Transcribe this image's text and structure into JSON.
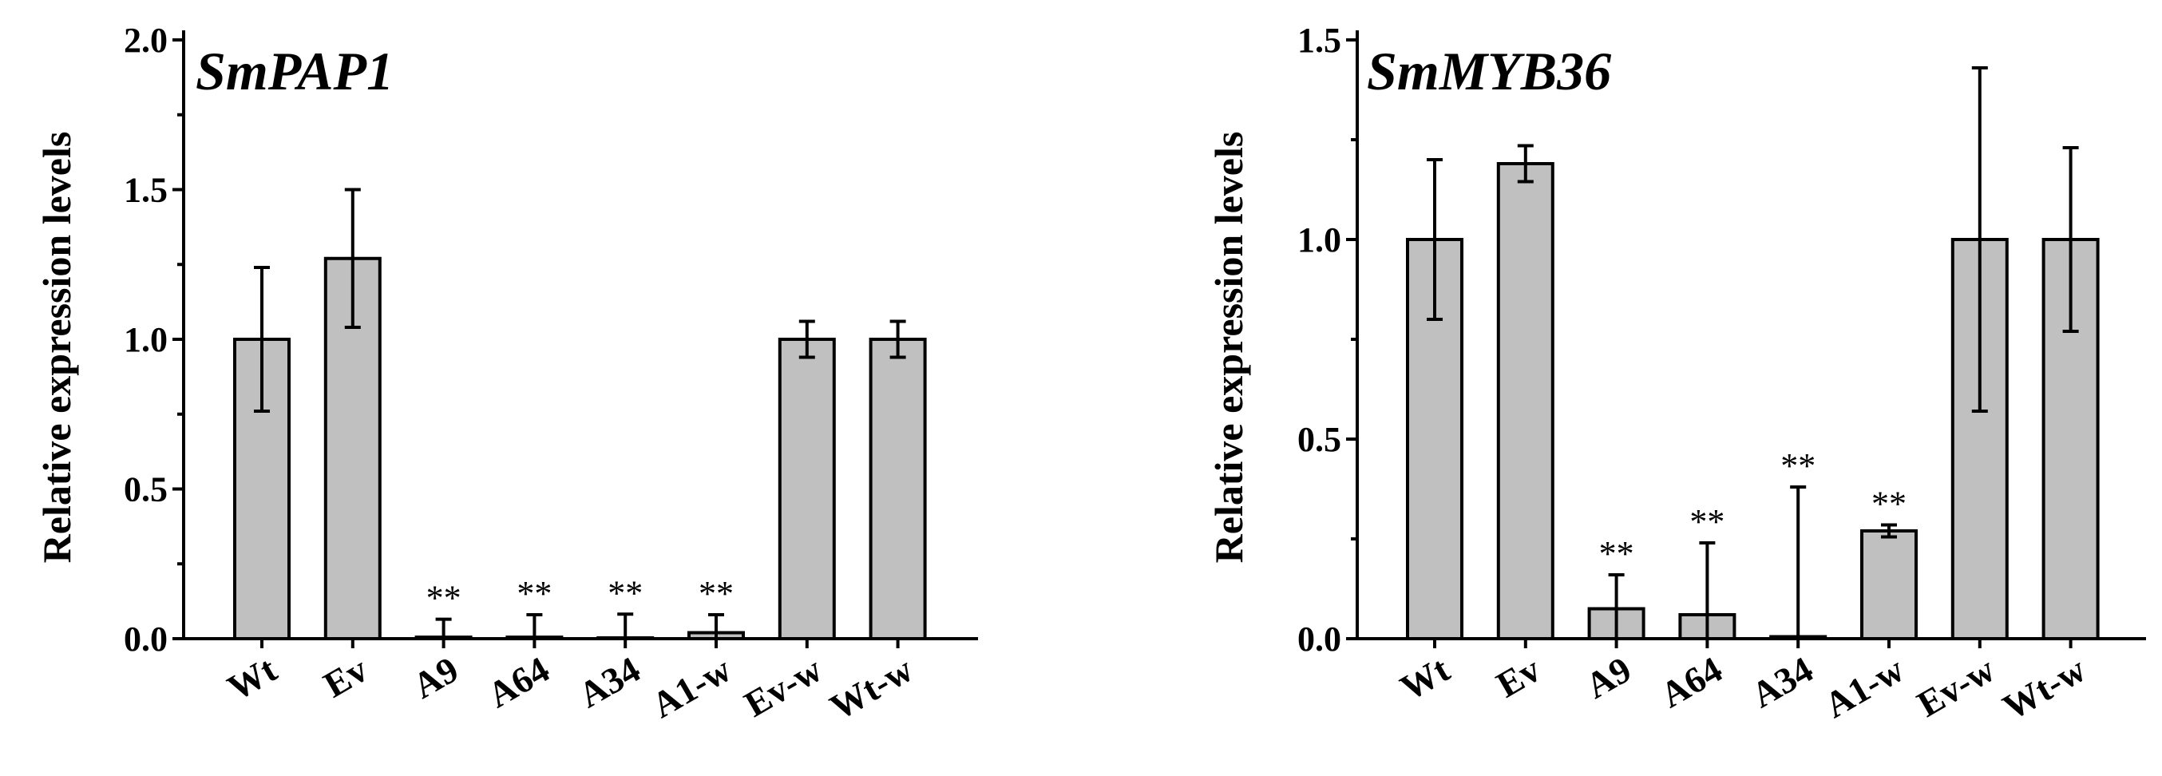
{
  "chart_data": [
    {
      "type": "bar",
      "title": "SmPAP1",
      "xlabel": "",
      "ylabel": "Relative expression levels",
      "ylim": [
        0,
        2.0
      ],
      "yticks": [
        "0.0",
        "0.5",
        "1.0",
        "1.5",
        "2.0"
      ],
      "categories": [
        "Wt",
        "Ev",
        "A9",
        "A64",
        "A34",
        "A1-w",
        "Ev-w",
        "Wt-w"
      ],
      "values": [
        1.0,
        1.27,
        0.005,
        0.005,
        0.002,
        0.02,
        1.0,
        1.0
      ],
      "errors": [
        0.24,
        0.23,
        0.06,
        0.075,
        0.08,
        0.06,
        0.06,
        0.06
      ],
      "annotations": [
        "",
        "",
        "**",
        "**",
        "**",
        "**",
        "",
        ""
      ],
      "bar_color": "#c0c0c0",
      "grid": false
    },
    {
      "type": "bar",
      "title": "SmMYB36",
      "xlabel": "",
      "ylabel": "Relative expression levels",
      "ylim": [
        0,
        1.5
      ],
      "yticks": [
        "0.0",
        "0.5",
        "1.0",
        "1.5"
      ],
      "categories": [
        "Wt",
        "Ev",
        "A9",
        "A64",
        "A34",
        "A1-w",
        "Ev-w",
        "Wt-w"
      ],
      "values": [
        1.0,
        1.19,
        0.075,
        0.06,
        0.005,
        0.27,
        1.0,
        1.0
      ],
      "errors": [
        0.2,
        0.045,
        0.085,
        0.18,
        0.375,
        0.015,
        0.43,
        0.23
      ],
      "annotations": [
        "",
        "",
        "**",
        "**",
        "**",
        "**",
        "",
        ""
      ],
      "bar_color": "#c0c0c0",
      "grid": false
    }
  ]
}
